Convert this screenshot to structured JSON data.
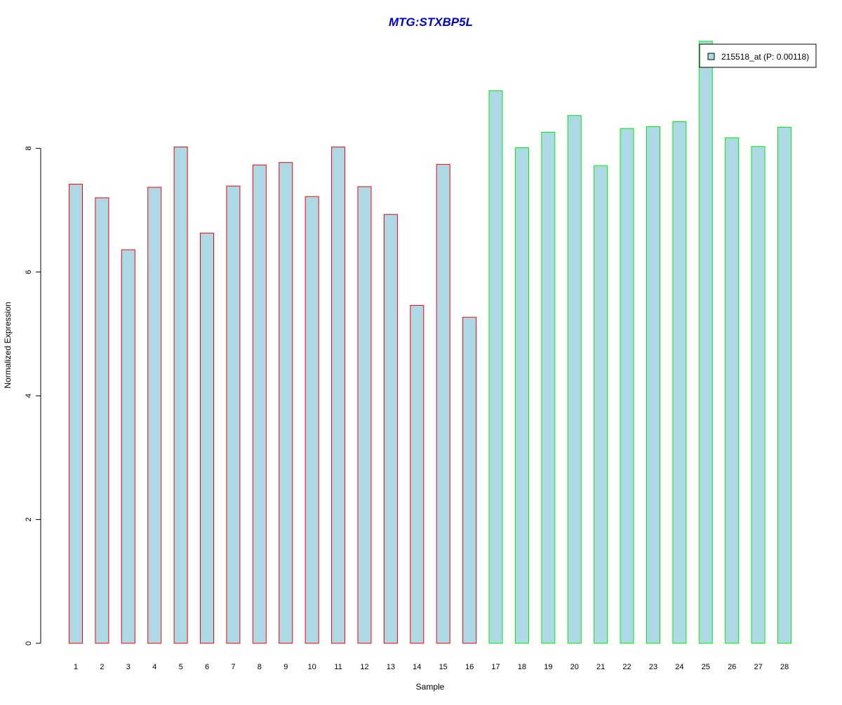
{
  "chart_data": {
    "type": "bar",
    "title": "MTG:STXBP5L",
    "xlabel": "Sample",
    "ylabel": "Normalized Expression",
    "categories": [
      "1",
      "2",
      "3",
      "4",
      "5",
      "6",
      "7",
      "8",
      "9",
      "10",
      "11",
      "12",
      "13",
      "14",
      "15",
      "16",
      "17",
      "18",
      "19",
      "20",
      "21",
      "22",
      "23",
      "24",
      "25",
      "26",
      "27",
      "28"
    ],
    "values": [
      7.42,
      7.2,
      6.36,
      7.37,
      8.02,
      6.63,
      7.39,
      7.73,
      7.77,
      7.22,
      8.02,
      7.38,
      6.93,
      5.46,
      7.74,
      5.27,
      8.93,
      8.01,
      8.26,
      8.53,
      7.72,
      8.32,
      8.35,
      8.43,
      9.73,
      8.17,
      8.03,
      8.34
    ],
    "group_border_colors": [
      "#ff0000",
      "#ff0000",
      "#ff0000",
      "#ff0000",
      "#ff0000",
      "#ff0000",
      "#ff0000",
      "#ff0000",
      "#ff0000",
      "#ff0000",
      "#ff0000",
      "#ff0000",
      "#ff0000",
      "#ff0000",
      "#ff0000",
      "#ff0000",
      "#00ee00",
      "#00ee00",
      "#00ee00",
      "#00ee00",
      "#00ee00",
      "#00ee00",
      "#00ee00",
      "#00ee00",
      "#00ee00",
      "#00ee00",
      "#00ee00",
      "#00ee00"
    ],
    "bar_fill_color": "#add8e6",
    "title_color": "#0000cd",
    "ylim": [
      0,
      9.73
    ],
    "yticks": [
      0,
      2,
      4,
      6,
      8
    ],
    "grid": false,
    "legend": {
      "position": "top-right",
      "entries": [
        {
          "label": "215518_at (P: 0.00118)",
          "color": "#add8e6"
        }
      ]
    }
  }
}
